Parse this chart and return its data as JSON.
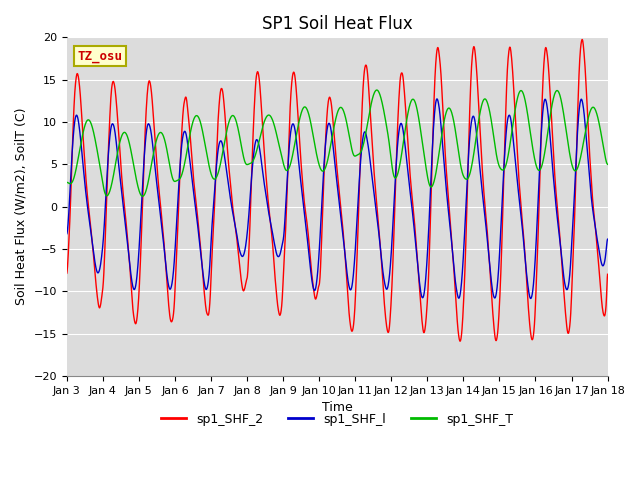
{
  "title": "SP1 Soil Heat Flux",
  "xlabel": "Time",
  "ylabel": "Soil Heat Flux (W/m2), SoilT (C)",
  "ylim": [
    -20,
    20
  ],
  "yticks": [
    -20,
    -15,
    -10,
    -5,
    0,
    5,
    10,
    15,
    20
  ],
  "xtick_labels": [
    "Jan 3",
    "Jan 4",
    "Jan 5",
    "Jan 6",
    "Jan 7",
    "Jan 8",
    "Jan 9",
    "Jan 10",
    "Jan 11",
    "Jan 12",
    "Jan 13",
    "Jan 14",
    "Jan 15",
    "Jan 16",
    "Jan 17",
    "Jan 18"
  ],
  "color_shf2": "#FF0000",
  "color_shf1": "#0000CC",
  "color_shft": "#00BB00",
  "bg_color": "#DCDCDC",
  "annotation_text": "TZ_osu",
  "annotation_color": "#CC0000",
  "annotation_bg": "#FFFFCC",
  "annotation_border": "#AAAA00",
  "legend_labels": [
    "sp1_SHF_2",
    "sp1_SHF_l",
    "sp1_SHF_T"
  ],
  "title_fontsize": 12,
  "axis_label_fontsize": 9,
  "tick_fontsize": 8,
  "legend_fontsize": 9
}
